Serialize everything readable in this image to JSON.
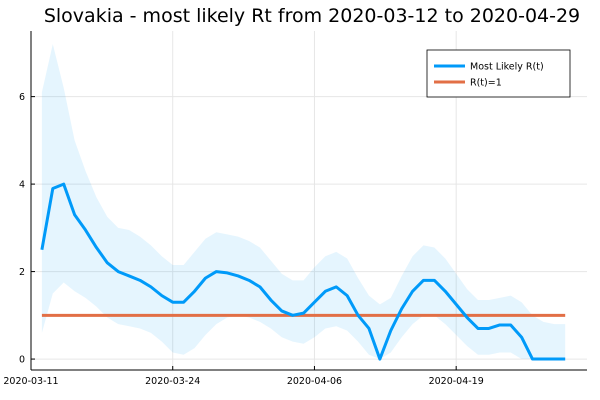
{
  "chart_data": {
    "type": "line",
    "title": "Slovakia - most likely Rt from 2020-03-12 to 2020-04-29",
    "xlabel": "",
    "ylabel": "",
    "x_tick_labels": [
      "2020-03-11",
      "2020-03-24",
      "2020-04-06",
      "2020-04-19"
    ],
    "y_tick_labels": [
      "0",
      "2",
      "4",
      "6"
    ],
    "xlim": [
      "2020-03-11",
      "2020-05-01"
    ],
    "ylim": [
      -0.25,
      7.5
    ],
    "grid": true,
    "legend_position": "top-right",
    "x": [
      "2020-03-12",
      "2020-03-13",
      "2020-03-14",
      "2020-03-15",
      "2020-03-16",
      "2020-03-17",
      "2020-03-18",
      "2020-03-19",
      "2020-03-20",
      "2020-03-21",
      "2020-03-22",
      "2020-03-23",
      "2020-03-24",
      "2020-03-25",
      "2020-03-26",
      "2020-03-27",
      "2020-03-28",
      "2020-03-29",
      "2020-03-30",
      "2020-03-31",
      "2020-04-01",
      "2020-04-02",
      "2020-04-03",
      "2020-04-04",
      "2020-04-05",
      "2020-04-06",
      "2020-04-07",
      "2020-04-08",
      "2020-04-09",
      "2020-04-10",
      "2020-04-11",
      "2020-04-12",
      "2020-04-13",
      "2020-04-14",
      "2020-04-15",
      "2020-04-16",
      "2020-04-17",
      "2020-04-18",
      "2020-04-19",
      "2020-04-20",
      "2020-04-21",
      "2020-04-22",
      "2020-04-23",
      "2020-04-24",
      "2020-04-25",
      "2020-04-26",
      "2020-04-27",
      "2020-04-28",
      "2020-04-29"
    ],
    "series": [
      {
        "name": "Most Likely R(t)",
        "color": "#009af9",
        "values": [
          2.5,
          3.9,
          4.0,
          3.3,
          2.95,
          2.55,
          2.2,
          2.0,
          1.9,
          1.8,
          1.65,
          1.45,
          1.3,
          1.3,
          1.55,
          1.85,
          2.0,
          1.97,
          1.9,
          1.8,
          1.65,
          1.35,
          1.1,
          1.0,
          1.05,
          1.3,
          1.55,
          1.65,
          1.45,
          1.0,
          0.7,
          0.0,
          0.65,
          1.15,
          1.55,
          1.8,
          1.8,
          1.55,
          1.25,
          0.95,
          0.7,
          0.7,
          0.78,
          0.78,
          0.5,
          0.0,
          0.0,
          0.0,
          0.0
        ],
        "lower": [
          0.6,
          1.5,
          1.75,
          1.55,
          1.4,
          1.2,
          0.95,
          0.8,
          0.75,
          0.7,
          0.6,
          0.4,
          0.15,
          0.1,
          0.25,
          0.55,
          0.8,
          0.95,
          1.0,
          0.95,
          0.85,
          0.7,
          0.5,
          0.4,
          0.35,
          0.5,
          0.7,
          0.75,
          0.65,
          0.4,
          0.1,
          0.0,
          0.15,
          0.5,
          0.8,
          1.0,
          1.0,
          0.8,
          0.55,
          0.3,
          0.1,
          0.1,
          0.15,
          0.15,
          0.0,
          0.0,
          0.0,
          0.0,
          0.0
        ],
        "upper": [
          6.1,
          7.2,
          6.2,
          5.0,
          4.3,
          3.7,
          3.25,
          3.0,
          2.95,
          2.8,
          2.6,
          2.35,
          2.15,
          2.15,
          2.45,
          2.75,
          2.9,
          2.85,
          2.8,
          2.7,
          2.55,
          2.25,
          1.95,
          1.8,
          1.8,
          2.1,
          2.35,
          2.45,
          2.3,
          1.85,
          1.45,
          1.25,
          1.4,
          1.9,
          2.35,
          2.6,
          2.55,
          2.3,
          1.95,
          1.6,
          1.35,
          1.35,
          1.4,
          1.45,
          1.3,
          1.0,
          0.85,
          0.8,
          0.8
        ]
      },
      {
        "name": "R(t)=1",
        "color": "#e26f46",
        "values": [
          1,
          1,
          1,
          1,
          1,
          1,
          1,
          1,
          1,
          1,
          1,
          1,
          1,
          1,
          1,
          1,
          1,
          1,
          1,
          1,
          1,
          1,
          1,
          1,
          1,
          1,
          1,
          1,
          1,
          1,
          1,
          1,
          1,
          1,
          1,
          1,
          1,
          1,
          1,
          1,
          1,
          1,
          1,
          1,
          1,
          1,
          1,
          1,
          1
        ]
      }
    ],
    "band_color": "#009af9"
  }
}
